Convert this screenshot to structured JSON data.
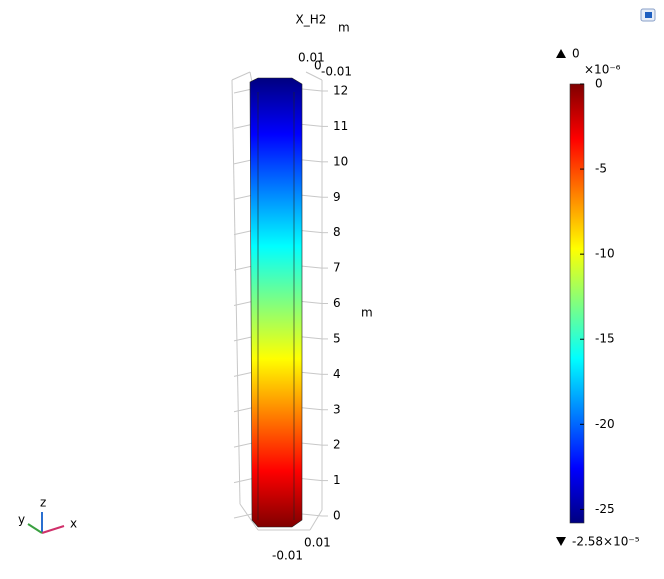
{
  "chart_data": {
    "type": "surface3d",
    "title": "X_H2",
    "title_unit": "m",
    "z_unit": "m",
    "zlim": [
      0,
      12
    ],
    "zticks": [
      0,
      1,
      2,
      3,
      4,
      5,
      6,
      7,
      8,
      9,
      10,
      11,
      12
    ],
    "top_ticks": [
      0.01,
      0,
      -0.01
    ],
    "bottom_ticks": [
      -0.01,
      0.01
    ],
    "colorbar": {
      "clim": [
        -25.8,
        0
      ],
      "cticks": [
        0,
        -5,
        -10,
        -15,
        -20,
        -25
      ],
      "multiplier": "×10⁻⁶",
      "max": 0,
      "min": {
        "value": -25.8,
        "label": "-2.58×10⁻⁵"
      },
      "colors": [
        "#800000",
        "#ff0000",
        "#ff8000",
        "#ffff00",
        "#80ff80",
        "#00ffff",
        "#0080ff",
        "#0000ff",
        "#000080"
      ]
    },
    "triad": {
      "x": "x",
      "y": "y",
      "z": "z"
    }
  }
}
